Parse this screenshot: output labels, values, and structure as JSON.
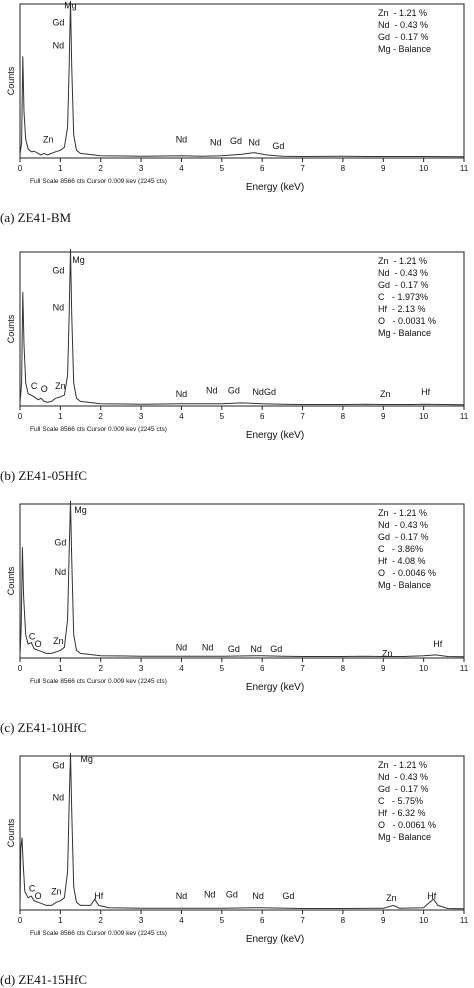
{
  "chart_data": [
    {
      "type": "line",
      "caption": "(a) ZE41-BM",
      "ylabel": "Counts",
      "xlabel": "Energy (keV)",
      "xlim": [
        0,
        11
      ],
      "x_ticks": [
        "0",
        "1",
        "2",
        "3",
        "4",
        "5",
        "6",
        "7",
        "8",
        "9",
        "10",
        "11"
      ],
      "footer": "Full Scale 8566 cts Cursor 0.009 kev (2245 cts)",
      "composition": [
        "Zn  - 1.21 %",
        "Nd  - 0.43 %",
        "Gd  - 0.17 %",
        "Mg - Balance"
      ],
      "peak_labels": [
        {
          "text": "Mg",
          "x": 1.25,
          "y": 0.97
        },
        {
          "text": "Gd",
          "x": 0.95,
          "y": 0.86
        },
        {
          "text": "Nd",
          "x": 0.95,
          "y": 0.71
        },
        {
          "text": "Zn",
          "x": 0.7,
          "y": 0.1
        },
        {
          "text": "Nd",
          "x": 4.0,
          "y": 0.1
        },
        {
          "text": "Nd",
          "x": 4.85,
          "y": 0.08
        },
        {
          "text": "Gd",
          "x": 5.35,
          "y": 0.09
        },
        {
          "text": "Nd",
          "x": 5.8,
          "y": 0.08
        },
        {
          "text": "Gd",
          "x": 6.4,
          "y": 0.06
        }
      ],
      "spectrum": [
        [
          0,
          0.02
        ],
        [
          0.04,
          0.1
        ],
        [
          0.07,
          0.66
        ],
        [
          0.1,
          0.3
        ],
        [
          0.14,
          0.12
        ],
        [
          0.2,
          0.06
        ],
        [
          0.28,
          0.04
        ],
        [
          0.35,
          0.045
        ],
        [
          0.45,
          0.03
        ],
        [
          0.52,
          0.02
        ],
        [
          0.6,
          0.03
        ],
        [
          0.68,
          0.02
        ],
        [
          0.78,
          0.03
        ],
        [
          0.88,
          0.04
        ],
        [
          1.0,
          0.05
        ],
        [
          1.1,
          0.07
        ],
        [
          1.18,
          0.2
        ],
        [
          1.22,
          0.6
        ],
        [
          1.25,
          1.05
        ],
        [
          1.28,
          0.6
        ],
        [
          1.33,
          0.15
        ],
        [
          1.4,
          0.05
        ],
        [
          1.5,
          0.03
        ],
        [
          2.0,
          0.015
        ],
        [
          3.0,
          0.012
        ],
        [
          4.0,
          0.015
        ],
        [
          4.5,
          0.012
        ],
        [
          5.0,
          0.015
        ],
        [
          5.5,
          0.025
        ],
        [
          5.8,
          0.035
        ],
        [
          6.1,
          0.02
        ],
        [
          6.5,
          0.012
        ],
        [
          7.0,
          0.01
        ],
        [
          8.0,
          0.012
        ],
        [
          8.6,
          0.01
        ],
        [
          9.0,
          0.01
        ],
        [
          10.0,
          0.01
        ],
        [
          11.0,
          0.008
        ]
      ]
    },
    {
      "type": "line",
      "caption": "(b) ZE41-05HfC",
      "ylabel": "Counts",
      "xlabel": "Energy (keV)",
      "xlim": [
        0,
        11
      ],
      "x_ticks": [
        "0",
        "1",
        "2",
        "3",
        "4",
        "5",
        "6",
        "7",
        "8",
        "9",
        "10",
        "11"
      ],
      "footer": "Full Scale 8566 cts Cursor 0.009 kev (2245 cts)",
      "composition": [
        "Zn  - 1.21 %",
        "Nd  - 0.43 %",
        "Gd  - 0.17 %",
        "C   - 1.973%",
        "Hf  - 2.13 %",
        "O   - 0.0031 %",
        "Mg - Balance"
      ],
      "peak_labels": [
        {
          "text": "Mg",
          "x": 1.45,
          "y": 0.93
        },
        {
          "text": "Gd",
          "x": 0.95,
          "y": 0.86
        },
        {
          "text": "Nd",
          "x": 0.95,
          "y": 0.62
        },
        {
          "text": "C",
          "x": 0.35,
          "y": 0.11
        },
        {
          "text": "O",
          "x": 0.6,
          "y": 0.09
        },
        {
          "text": "Zn",
          "x": 1.0,
          "y": 0.11
        },
        {
          "text": "Nd",
          "x": 4.0,
          "y": 0.06
        },
        {
          "text": "Nd",
          "x": 4.75,
          "y": 0.08
        },
        {
          "text": "Gd",
          "x": 5.3,
          "y": 0.08
        },
        {
          "text": "NdGd",
          "x": 6.05,
          "y": 0.07
        },
        {
          "text": "Zn",
          "x": 9.05,
          "y": 0.06
        },
        {
          "text": "Hf",
          "x": 10.05,
          "y": 0.07
        }
      ],
      "spectrum": [
        [
          0,
          0.02
        ],
        [
          0.04,
          0.15
        ],
        [
          0.07,
          0.74
        ],
        [
          0.1,
          0.4
        ],
        [
          0.14,
          0.15
        ],
        [
          0.2,
          0.08
        ],
        [
          0.28,
          0.07
        ],
        [
          0.35,
          0.06
        ],
        [
          0.45,
          0.04
        ],
        [
          0.52,
          0.05
        ],
        [
          0.6,
          0.03
        ],
        [
          0.68,
          0.025
        ],
        [
          0.78,
          0.03
        ],
        [
          0.88,
          0.05
        ],
        [
          1.0,
          0.06
        ],
        [
          1.1,
          0.07
        ],
        [
          1.18,
          0.2
        ],
        [
          1.22,
          0.6
        ],
        [
          1.25,
          1.05
        ],
        [
          1.28,
          0.6
        ],
        [
          1.33,
          0.15
        ],
        [
          1.4,
          0.05
        ],
        [
          1.5,
          0.03
        ],
        [
          2.0,
          0.015
        ],
        [
          3.0,
          0.012
        ],
        [
          4.0,
          0.015
        ],
        [
          5.0,
          0.015
        ],
        [
          5.5,
          0.02
        ],
        [
          6.0,
          0.015
        ],
        [
          6.5,
          0.012
        ],
        [
          7.0,
          0.01
        ],
        [
          8.0,
          0.01
        ],
        [
          8.6,
          0.012
        ],
        [
          9.0,
          0.01
        ],
        [
          9.7,
          0.01
        ],
        [
          10.0,
          0.012
        ],
        [
          11.0,
          0.008
        ]
      ]
    },
    {
      "type": "line",
      "caption": "(c) ZE41-10HfC",
      "ylabel": "Counts",
      "xlabel": "Energy (keV)",
      "xlim": [
        0,
        11
      ],
      "x_ticks": [
        "0",
        "1",
        "2",
        "3",
        "4",
        "5",
        "6",
        "7",
        "8",
        "9",
        "10",
        "11"
      ],
      "footer": "Full Scale 8566 cts Cursor 0.009 kev (2245 cts)",
      "composition": [
        "Zn  - 1.21 %",
        "Nd  - 0.43 %",
        "Gd  - 0.17 %",
        "C   - 3.86%",
        "Hf  - 4.08 %",
        "O   - 0.0046 %",
        "Mg - Balance"
      ],
      "peak_labels": [
        {
          "text": "Mg",
          "x": 1.5,
          "y": 0.94
        },
        {
          "text": "Gd",
          "x": 1.0,
          "y": 0.73
        },
        {
          "text": "Nd",
          "x": 1.0,
          "y": 0.54
        },
        {
          "text": "C",
          "x": 0.3,
          "y": 0.12
        },
        {
          "text": "O",
          "x": 0.45,
          "y": 0.07
        },
        {
          "text": "Zn",
          "x": 0.95,
          "y": 0.09
        },
        {
          "text": "Nd",
          "x": 4.0,
          "y": 0.05
        },
        {
          "text": "Nd",
          "x": 4.65,
          "y": 0.05
        },
        {
          "text": "Gd",
          "x": 5.3,
          "y": 0.04
        },
        {
          "text": "Nd",
          "x": 5.85,
          "y": 0.04
        },
        {
          "text": "Gd",
          "x": 6.35,
          "y": 0.04
        },
        {
          "text": "Zn",
          "x": 9.1,
          "y": 0.01
        },
        {
          "text": "Hf",
          "x": 10.35,
          "y": 0.07
        }
      ],
      "spectrum": [
        [
          0,
          0.02
        ],
        [
          0.03,
          0.2
        ],
        [
          0.06,
          0.72
        ],
        [
          0.09,
          0.4
        ],
        [
          0.14,
          0.15
        ],
        [
          0.2,
          0.09
        ],
        [
          0.28,
          0.1
        ],
        [
          0.35,
          0.06
        ],
        [
          0.45,
          0.05
        ],
        [
          0.55,
          0.04
        ],
        [
          0.65,
          0.03
        ],
        [
          0.78,
          0.03
        ],
        [
          0.9,
          0.04
        ],
        [
          1.0,
          0.05
        ],
        [
          1.1,
          0.07
        ],
        [
          1.18,
          0.25
        ],
        [
          1.22,
          0.7
        ],
        [
          1.25,
          1.05
        ],
        [
          1.28,
          0.65
        ],
        [
          1.33,
          0.15
        ],
        [
          1.4,
          0.05
        ],
        [
          1.5,
          0.03
        ],
        [
          2.0,
          0.015
        ],
        [
          3.0,
          0.012
        ],
        [
          4.0,
          0.012
        ],
        [
          5.0,
          0.012
        ],
        [
          6.0,
          0.015
        ],
        [
          6.5,
          0.012
        ],
        [
          7.0,
          0.01
        ],
        [
          8.0,
          0.01
        ],
        [
          8.5,
          0.012
        ],
        [
          9.0,
          0.01
        ],
        [
          9.5,
          0.01
        ],
        [
          10.0,
          0.015
        ],
        [
          10.3,
          0.02
        ],
        [
          10.6,
          0.01
        ],
        [
          11.0,
          0.008
        ]
      ]
    },
    {
      "type": "line",
      "caption": "(d) ZE41-15HfC",
      "ylabel": "Counts",
      "xlabel": "Energy (keV)",
      "xlim": [
        0,
        11
      ],
      "x_ticks": [
        "0",
        "1",
        "2",
        "3",
        "4",
        "5",
        "6",
        "7",
        "8",
        "9",
        "10",
        "11"
      ],
      "footer": "Full Scale 8566 cts Cursor 0.009 kev (2245 cts)",
      "composition": [
        "Zn  - 1.21 %",
        "Nd  - 0.43 %",
        "Gd  - 0.17 %",
        "C   - 5.75%",
        "Hf  - 6.32 %",
        "O   - 0.0061 %",
        "Mg - Balance"
      ],
      "peak_labels": [
        {
          "text": "Mg",
          "x": 1.65,
          "y": 0.96
        },
        {
          "text": "Gd",
          "x": 0.95,
          "y": 0.92
        },
        {
          "text": "Nd",
          "x": 0.95,
          "y": 0.71
        },
        {
          "text": "C",
          "x": 0.3,
          "y": 0.12
        },
        {
          "text": "O",
          "x": 0.45,
          "y": 0.07
        },
        {
          "text": "Zn",
          "x": 0.9,
          "y": 0.1
        },
        {
          "text": "Hf",
          "x": 1.95,
          "y": 0.07
        },
        {
          "text": "Nd",
          "x": 4.0,
          "y": 0.07
        },
        {
          "text": "Nd",
          "x": 4.7,
          "y": 0.08
        },
        {
          "text": "Gd",
          "x": 5.25,
          "y": 0.08
        },
        {
          "text": "Nd",
          "x": 5.9,
          "y": 0.07
        },
        {
          "text": "Gd",
          "x": 6.65,
          "y": 0.07
        },
        {
          "text": "Zn",
          "x": 9.2,
          "y": 0.06
        },
        {
          "text": "Hf",
          "x": 10.2,
          "y": 0.07
        }
      ],
      "spectrum": [
        [
          0,
          0.02
        ],
        [
          0.02,
          0.4
        ],
        [
          0.05,
          0.47
        ],
        [
          0.08,
          0.3
        ],
        [
          0.12,
          0.12
        ],
        [
          0.2,
          0.08
        ],
        [
          0.28,
          0.09
        ],
        [
          0.35,
          0.06
        ],
        [
          0.45,
          0.05
        ],
        [
          0.55,
          0.04
        ],
        [
          0.65,
          0.03
        ],
        [
          0.78,
          0.03
        ],
        [
          0.9,
          0.05
        ],
        [
          1.0,
          0.06
        ],
        [
          1.1,
          0.08
        ],
        [
          1.18,
          0.25
        ],
        [
          1.22,
          0.7
        ],
        [
          1.25,
          1.05
        ],
        [
          1.28,
          0.65
        ],
        [
          1.33,
          0.15
        ],
        [
          1.4,
          0.05
        ],
        [
          1.5,
          0.03
        ],
        [
          1.75,
          0.03
        ],
        [
          1.85,
          0.07
        ],
        [
          1.95,
          0.03
        ],
        [
          2.2,
          0.015
        ],
        [
          3.0,
          0.012
        ],
        [
          4.0,
          0.012
        ],
        [
          5.0,
          0.012
        ],
        [
          6.0,
          0.015
        ],
        [
          7.0,
          0.01
        ],
        [
          8.0,
          0.01
        ],
        [
          9.0,
          0.012
        ],
        [
          9.25,
          0.03
        ],
        [
          9.4,
          0.012
        ],
        [
          10.0,
          0.015
        ],
        [
          10.15,
          0.05
        ],
        [
          10.25,
          0.07
        ],
        [
          10.35,
          0.03
        ],
        [
          10.6,
          0.01
        ],
        [
          11.0,
          0.008
        ]
      ]
    }
  ]
}
